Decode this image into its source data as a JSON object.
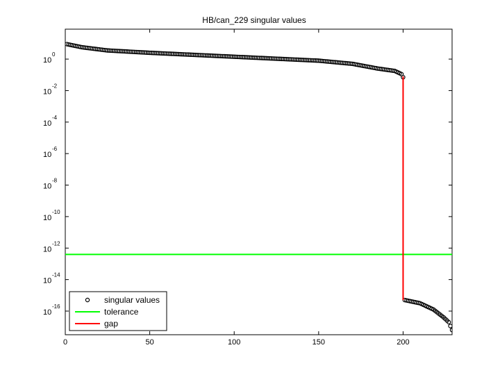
{
  "chart_data": {
    "type": "scatter",
    "title": "HB/can_229 singular values",
    "xlabel": "",
    "ylabel": "",
    "y_scale": "log",
    "xlim": [
      0,
      229
    ],
    "ylim_log10": [
      -17.5,
      1.9
    ],
    "x_ticks": [
      "0",
      "50",
      "100",
      "150",
      "200"
    ],
    "x_tick_values": [
      0,
      50,
      100,
      150,
      200
    ],
    "y_ticks_base": "10",
    "y_tick_exponents": [
      "0",
      "-2",
      "-4",
      "-6",
      "-8",
      "-10",
      "-12",
      "-14",
      "-16"
    ],
    "y_tick_values_log10": [
      0,
      -2,
      -4,
      -6,
      -8,
      -10,
      -12,
      -14,
      -16
    ],
    "legend_position": "bottom-left",
    "legend": [
      {
        "label": "singular values",
        "marker": "circle",
        "color": "#000000"
      },
      {
        "label": "tolerance",
        "marker": "line",
        "color": "#00ff00"
      },
      {
        "label": "gap",
        "marker": "line",
        "color": "#ff0000"
      }
    ],
    "series": [
      {
        "name": "singular values",
        "kind": "scatter",
        "color": "#000000",
        "keypoints_log10": [
          [
            1,
            0.95
          ],
          [
            10,
            0.75
          ],
          [
            25,
            0.55
          ],
          [
            50,
            0.4
          ],
          [
            100,
            0.15
          ],
          [
            150,
            -0.1
          ],
          [
            170,
            -0.3
          ],
          [
            185,
            -0.6
          ],
          [
            195,
            -0.75
          ],
          [
            199,
            -0.95
          ],
          [
            200,
            -1.15
          ],
          [
            201,
            -15.3
          ],
          [
            210,
            -15.5
          ],
          [
            218,
            -15.9
          ],
          [
            224,
            -16.4
          ],
          [
            227,
            -16.7
          ],
          [
            229,
            -17.2
          ]
        ]
      },
      {
        "name": "tolerance",
        "kind": "hline",
        "color": "#00ff00",
        "y_log10": -12.4
      },
      {
        "name": "gap",
        "kind": "vline",
        "color": "#ff0000",
        "x": 200,
        "y_from_log10": -1.1,
        "y_to_log10": -15.3
      }
    ]
  }
}
